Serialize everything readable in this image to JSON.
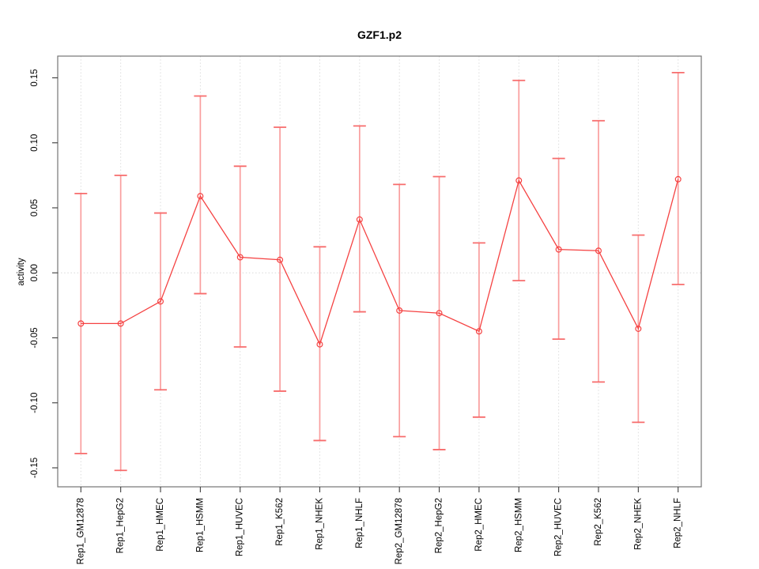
{
  "chart_data": {
    "type": "line",
    "title": "GZF1.p2",
    "xlabel": "",
    "ylabel": "activity",
    "ylim": [
      -0.1646,
      0.1667
    ],
    "grid": "vertical-dotted",
    "zero_line": true,
    "legend": "none",
    "error_bars": true,
    "yticks": {
      "values": [
        0.15,
        0.1,
        0.05,
        0.0,
        -0.05,
        -0.1,
        -0.15
      ],
      "labels": [
        "0.15",
        "0.10",
        "0.05",
        "0.00",
        "-0.05",
        "-0.10",
        "-0.15"
      ]
    },
    "categories": [
      "Rep1_GM12878",
      "Rep1_HepG2",
      "Rep1_HMEC",
      "Rep1_HSMM",
      "Rep1_HUVEC",
      "Rep1_K562",
      "Rep1_NHEK",
      "Rep1_NHLF",
      "Rep2_GM12878",
      "Rep2_HepG2",
      "Rep2_HMEC",
      "Rep2_HSMM",
      "Rep2_HUVEC",
      "Rep2_K562",
      "Rep2_NHEK",
      "Rep2_NHLF"
    ],
    "series": [
      {
        "name": "activity",
        "values": [
          -0.039,
          -0.039,
          -0.022,
          0.059,
          0.012,
          0.01,
          -0.055,
          0.041,
          -0.029,
          -0.031,
          -0.045,
          0.071,
          0.018,
          0.017,
          -0.043,
          0.072
        ],
        "upper": [
          0.061,
          0.075,
          0.046,
          0.136,
          0.082,
          0.112,
          0.02,
          0.113,
          0.068,
          0.074,
          0.023,
          0.148,
          0.088,
          0.117,
          0.029,
          0.154
        ],
        "lower": [
          -0.139,
          -0.152,
          -0.09,
          -0.016,
          -0.057,
          -0.091,
          -0.129,
          -0.03,
          -0.126,
          -0.136,
          -0.111,
          -0.006,
          -0.051,
          -0.084,
          -0.115,
          -0.009
        ]
      }
    ],
    "colors": {
      "line": "#f54242",
      "point": "#f54242",
      "error_bar": "#f99e9e",
      "error_cap": "#f76c6c",
      "grid": "#dcdcdc",
      "zero": "#d9d9d9",
      "frame": "#757575",
      "tick": "#3c3c3c",
      "text": "#000000"
    }
  }
}
